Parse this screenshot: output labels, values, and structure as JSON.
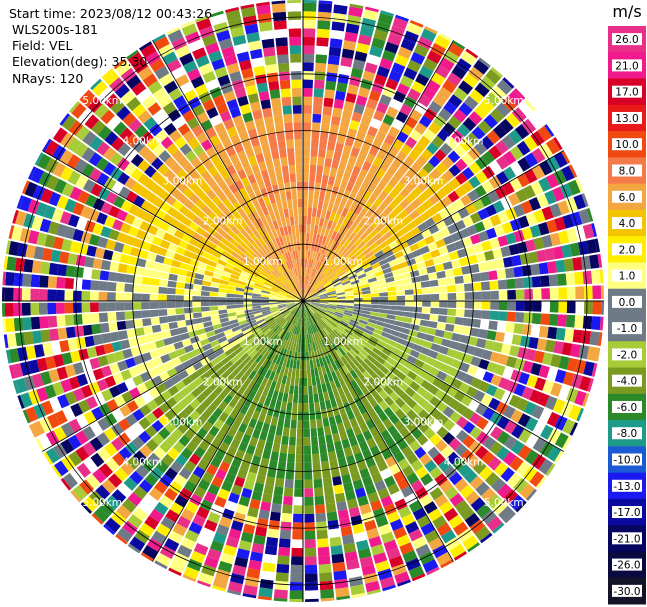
{
  "header": {
    "start_time": "Start time: 2023/08/12 00:43:26",
    "instrument": "WLS200s-181",
    "field": "Field: VEL",
    "elevation": "Elevation(deg): 35.30",
    "nrays": "NRays: 120"
  },
  "colorbar": {
    "unit": "m/s",
    "ticks": [
      "26.0",
      "21.0",
      "17.0",
      "13.0",
      "10.0",
      "8.0",
      "6.0",
      "4.0",
      "2.0",
      "1.0",
      "0.0",
      "-1.0",
      "-2.0",
      "-4.0",
      "-6.0",
      "-8.0",
      "-10.0",
      "-13.0",
      "-17.0",
      "-21.0",
      "-26.0",
      "-30.0"
    ],
    "colors": [
      "#e8308a",
      "#f01a8c",
      "#d80026",
      "#e81a1a",
      "#f04a10",
      "#f47a4a",
      "#f4a640",
      "#f4c400",
      "#ffee00",
      "#ffff80",
      "#6e7a86",
      "#6e7a86",
      "#a8cc38",
      "#7a9a20",
      "#2a8a2a",
      "#1e9a8a",
      "#1a5ad2",
      "#1a1af0",
      "#0a0aa0",
      "#060660",
      "#0a0a40",
      "#141428"
    ]
  },
  "chart_data": {
    "type": "ppi",
    "field": "VEL",
    "units": "m/s",
    "n_rays": 120,
    "elevation_deg": 35.3,
    "range_ring_labels": [
      "1.00km",
      "2.00km",
      "3.00km",
      "4.00km",
      "5.00km"
    ],
    "range_rings_km": [
      1,
      2,
      3,
      4,
      5
    ],
    "max_range_km": 5.3,
    "clim": [
      -30.0,
      26.0
    ],
    "pattern": {
      "north_half": "positive 2 to 10 m/s (yellow/orange/salmon), max near N",
      "south_half": "negative -2 to -8 m/s (green/teal)",
      "near_zero_sectors": "grey along ~70 and ~250 deg",
      "beyond_km": 3.0,
      "beyond_note": "noise (random colors) beyond ~3 km"
    }
  }
}
